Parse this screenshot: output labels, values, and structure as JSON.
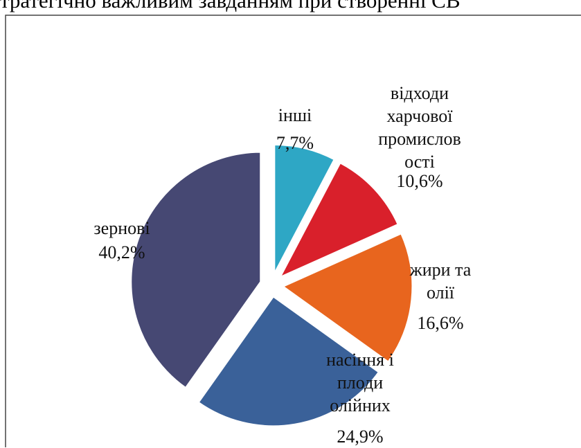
{
  "document": {
    "text": "тратегічно важливим завданням при створенні СВ"
  },
  "chart_data": {
    "type": "pie",
    "categories": [
      "інші",
      "відходи\nхарчової\nпромислов\nості",
      "жири та\nолії",
      "насіння і\nплоди\nолійних",
      "зернові"
    ],
    "values": [
      7.7,
      10.6,
      16.6,
      24.9,
      40.2
    ],
    "value_labels": [
      "7,7%",
      "10,6%",
      "16,6%",
      "24,9%",
      "40,2%"
    ],
    "colors": [
      "#2ea7c5",
      "#d9202b",
      "#e8651e",
      "#3a6199",
      "#464873"
    ],
    "exploded": true
  }
}
